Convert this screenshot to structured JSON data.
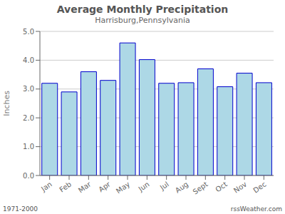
{
  "chart_data": {
    "type": "bar",
    "title": "Average Monthly Precipitation",
    "subtitle": "Harrisburg,Pennsylvania",
    "y_label": "Inches",
    "annotations": [
      "1971-2000",
      "rssWeather.com"
    ],
    "categories": [
      "Jan",
      "Feb",
      "Mar",
      "Apr",
      "May",
      "Jun",
      "Jul",
      "Aug",
      "Sept",
      "Oct",
      "Nov",
      "Dec"
    ],
    "values": [
      3.2,
      2.9,
      3.6,
      3.3,
      4.6,
      4.02,
      3.2,
      3.22,
      3.7,
      3.08,
      3.55,
      3.22
    ],
    "color": "#add8e6",
    "ylim": [
      0.0,
      5.0
    ],
    "yticks": [
      {
        "value": 0,
        "label": "0.0"
      },
      {
        "value": 1,
        "label": "1.0"
      },
      {
        "value": 2,
        "label": "2.0"
      },
      {
        "value": 3,
        "label": "3.0"
      },
      {
        "value": 4,
        "label": "4.0"
      },
      {
        "value": 5,
        "label": "5.0"
      }
    ],
    "grid": true
  }
}
